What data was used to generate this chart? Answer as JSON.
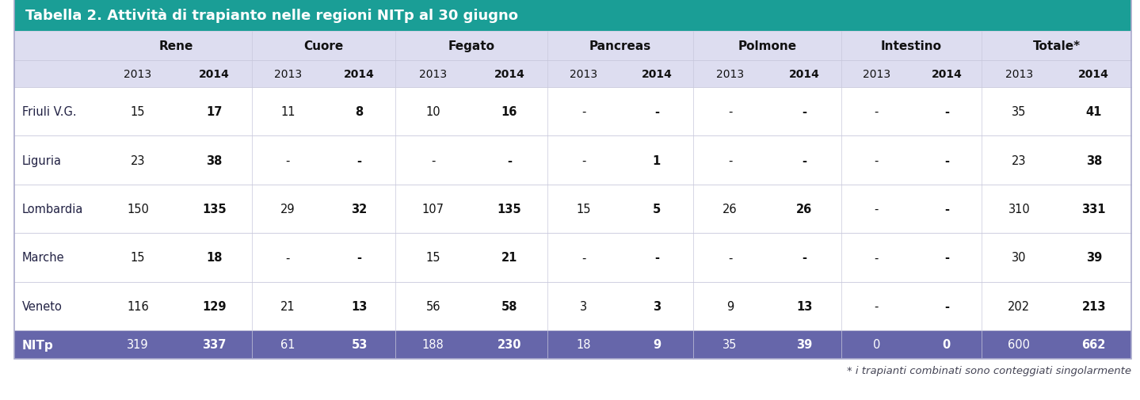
{
  "title": "Tabella 2. Attività di trapianto nelle regioni NITp al 30 giugno",
  "title_bg": "#1a9e96",
  "title_color": "#ffffff",
  "header_bg": "#ddddf0",
  "data_bg": "#ffffff",
  "footer_bg": "#6666aa",
  "footer_color": "#ffffff",
  "note": "* i trapianti combinati sono conteggiati singolarmente",
  "categories": [
    "Rene",
    "Cuore",
    "Fegato",
    "Pancreas",
    "Polmone",
    "Intestino",
    "Totale*"
  ],
  "regions": [
    "Friuli V.G.",
    "Liguria",
    "Lombardia",
    "Marche",
    "Veneto"
  ],
  "footer_label": "NITp",
  "data": {
    "Friuli V.G.": {
      "Rene": [
        "15",
        "17"
      ],
      "Cuore": [
        "11",
        "8"
      ],
      "Fegato": [
        "10",
        "16"
      ],
      "Pancreas": [
        "-",
        "-"
      ],
      "Polmone": [
        "-",
        "-"
      ],
      "Intestino": [
        "-",
        "-"
      ],
      "Totale*": [
        "35",
        "41"
      ]
    },
    "Liguria": {
      "Rene": [
        "23",
        "38"
      ],
      "Cuore": [
        "-",
        "-"
      ],
      "Fegato": [
        "-",
        "-"
      ],
      "Pancreas": [
        "-",
        "1"
      ],
      "Polmone": [
        "-",
        "-"
      ],
      "Intestino": [
        "-",
        "-"
      ],
      "Totale*": [
        "23",
        "38"
      ]
    },
    "Lombardia": {
      "Rene": [
        "150",
        "135"
      ],
      "Cuore": [
        "29",
        "32"
      ],
      "Fegato": [
        "107",
        "135"
      ],
      "Pancreas": [
        "15",
        "5"
      ],
      "Polmone": [
        "26",
        "26"
      ],
      "Intestino": [
        "-",
        "-"
      ],
      "Totale*": [
        "310",
        "331"
      ]
    },
    "Marche": {
      "Rene": [
        "15",
        "18"
      ],
      "Cuore": [
        "-",
        "-"
      ],
      "Fegato": [
        "15",
        "21"
      ],
      "Pancreas": [
        "-",
        "-"
      ],
      "Polmone": [
        "-",
        "-"
      ],
      "Intestino": [
        "-",
        "-"
      ],
      "Totale*": [
        "30",
        "39"
      ]
    },
    "Veneto": {
      "Rene": [
        "116",
        "129"
      ],
      "Cuore": [
        "21",
        "13"
      ],
      "Fegato": [
        "56",
        "58"
      ],
      "Pancreas": [
        "3",
        "3"
      ],
      "Polmone": [
        "9",
        "13"
      ],
      "Intestino": [
        "-",
        "-"
      ],
      "Totale*": [
        "202",
        "213"
      ]
    }
  },
  "footer_data": {
    "Rene": [
      "319",
      "337"
    ],
    "Cuore": [
      "61",
      "53"
    ],
    "Fegato": [
      "188",
      "230"
    ],
    "Pancreas": [
      "18",
      "9"
    ],
    "Polmone": [
      "35",
      "39"
    ],
    "Intestino": [
      "0",
      "0"
    ],
    "Totale*": [
      "600",
      "662"
    ]
  }
}
